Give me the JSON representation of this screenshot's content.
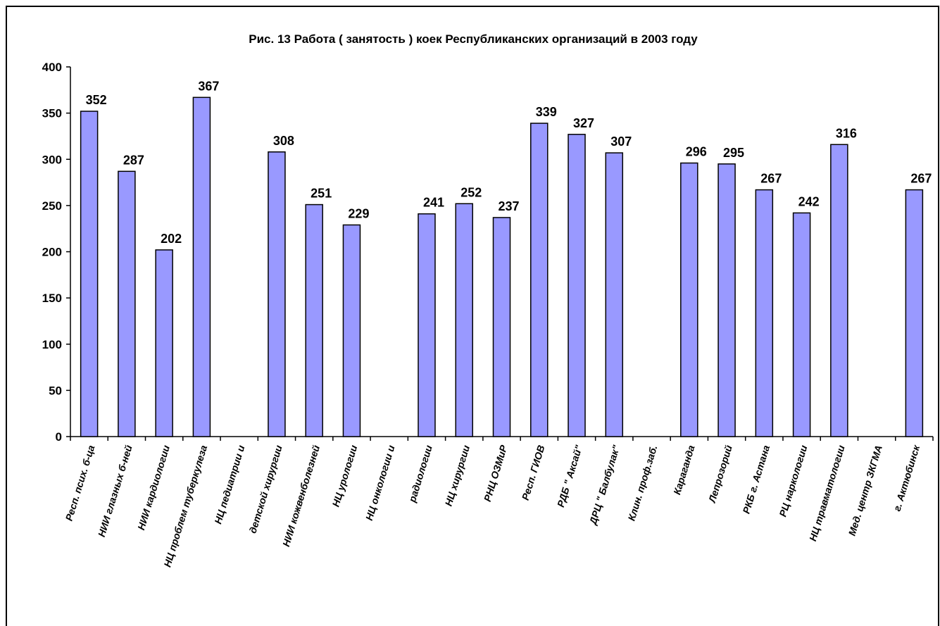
{
  "chart_data": {
    "type": "bar",
    "title": "Рис. 13 Работа ( занятость ) коек Республиканских организаций в 2003 году",
    "categories": [
      "Респ. псих. б-ца",
      "НИИ глазных б-ней",
      "НИИ кардиологии",
      "НЦ проблем туберкулеза",
      "НЦ педиатрии и",
      "детской хирургии",
      "НИИ кожвенболезней",
      "НЦ урологии",
      "НЦ онкологии и",
      "радиологии",
      "НЦ хирургии",
      "РНЦ ОЗМиР",
      "Респ. ГИОВ",
      "РДБ \" Аксай\"",
      "ДРЦ \" Балбулак\"",
      "Клин. проф.заб.",
      "Караганда",
      "Лепрозорий",
      "РКБ г. Астана",
      "РЦ наркологии",
      "НЦ травматологии",
      "Мед. центр ЗКГМА",
      "г. Актюбинск"
    ],
    "values": [
      352,
      287,
      202,
      367,
      null,
      308,
      251,
      229,
      null,
      241,
      252,
      237,
      339,
      327,
      307,
      null,
      296,
      295,
      267,
      242,
      316,
      null,
      267
    ],
    "color": "#9999ff",
    "ylim": [
      0,
      400
    ],
    "yticks": [
      0,
      50,
      100,
      150,
      200,
      250,
      300,
      350,
      400
    ],
    "grid": false
  }
}
